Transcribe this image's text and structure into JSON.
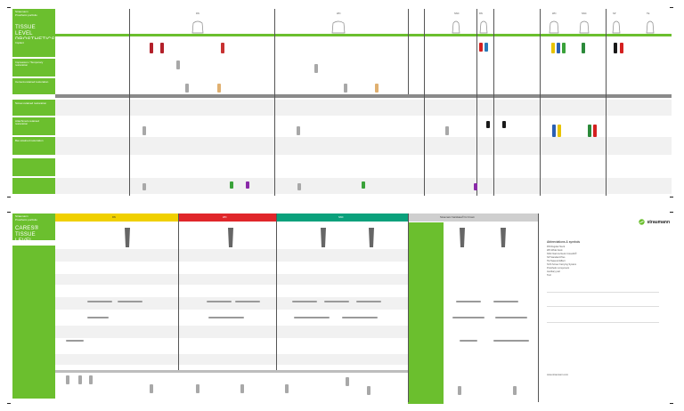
{
  "top_panel": {
    "title_small_1": "Straumann",
    "title_small_2": "Prosthetic portfolio",
    "title_big": "TISSUE LEVEL PROSTHETICS",
    "row_labels": [
      "Implant",
      "Impression / Temporary restoration",
      "Cement-retained restoration",
      "Screw-retained restoration",
      "Attachment-retained restoration",
      "Bar-retained restoration"
    ],
    "columns": [
      {
        "label": "RN"
      },
      {
        "label": "WN"
      },
      {
        "label": "NNC"
      },
      {
        "label": "RN"
      },
      {
        "label": "WN"
      },
      {
        "label": "NNC"
      },
      {
        "label": "SP"
      },
      {
        "label": "TE"
      }
    ]
  },
  "bottom_panel": {
    "title_small_1": "Straumann",
    "title_small_2": "Prosthetic portfolio",
    "title_big": "CARES® TISSUE LEVEL",
    "headers": [
      {
        "label": "RN",
        "color": "#f0d000"
      },
      {
        "label": "WN",
        "color": "#e0262a"
      },
      {
        "label": "NNC",
        "color": "#0aa17c"
      },
      {
        "label": "Straumann Variobase® for Crown",
        "color": "#cfcfcf"
      }
    ]
  },
  "legend": {
    "brand": "straumann",
    "title": "Abbreviations & symbols",
    "lines": [
      "RN  Regular Neck",
      "WN  Wide Neck",
      "NNC Narrow Neck CrossFit®",
      "SP  Standard Plus",
      "TE  Tapered Effect",
      "SCS Screw Carrying System",
      "     Prosthetic component",
      "     Auxiliary part",
      "     Tool"
    ],
    "footer": "www.straumann.com"
  },
  "colors": {
    "brand_green": "#6bbf2e",
    "rn_yellow": "#f0d000",
    "wn_red": "#e0262a",
    "nnc_teal": "#0aa17c"
  }
}
